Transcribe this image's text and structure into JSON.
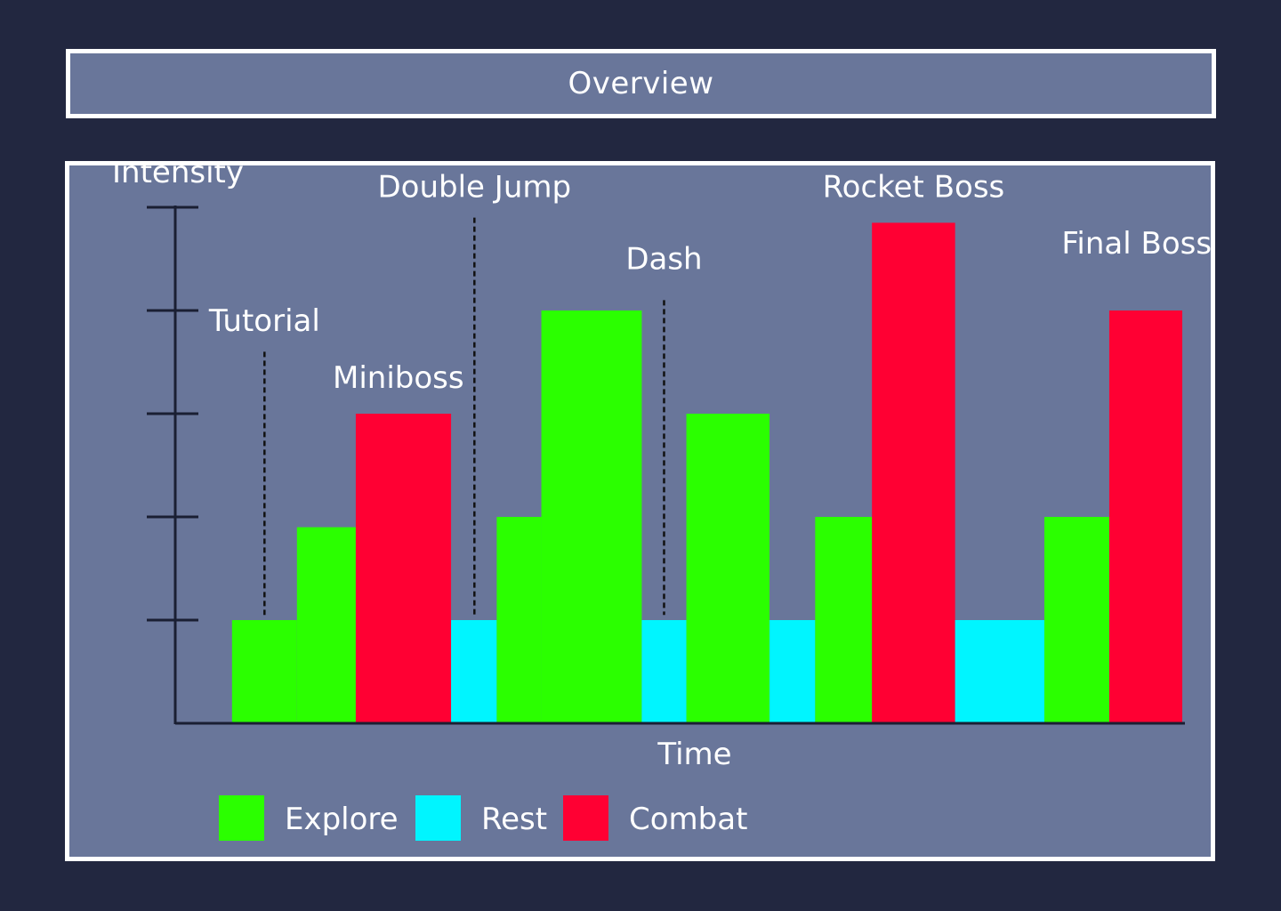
{
  "header": {
    "title": "Overview"
  },
  "chart_data": {
    "type": "bar",
    "title": "",
    "ylabel": "Intensity",
    "xlabel": "Time",
    "ylim": [
      0,
      5
    ],
    "y_ticks": [
      1,
      2,
      3,
      4,
      5
    ],
    "colors": {
      "Explore": "#2BFF00",
      "Rest": "#00F5FF",
      "Combat": "#FF0033"
    },
    "legend": {
      "placement": "bottom",
      "items": [
        "Explore",
        "Rest",
        "Combat"
      ]
    },
    "segments": [
      {
        "type": "Explore",
        "x_start": 0.56,
        "x_end": 1.2,
        "value": 1.0
      },
      {
        "type": "Explore",
        "x_start": 1.2,
        "x_end": 1.78,
        "value": 1.9
      },
      {
        "type": "Combat",
        "x_start": 1.78,
        "x_end": 2.72,
        "value": 3.0
      },
      {
        "type": "Rest",
        "x_start": 2.72,
        "x_end": 3.17,
        "value": 1.0
      },
      {
        "type": "Explore",
        "x_start": 3.17,
        "x_end": 3.61,
        "value": 2.0
      },
      {
        "type": "Explore",
        "x_start": 3.61,
        "x_end": 4.6,
        "value": 4.0
      },
      {
        "type": "Rest",
        "x_start": 4.6,
        "x_end": 5.04,
        "value": 1.0
      },
      {
        "type": "Explore",
        "x_start": 5.04,
        "x_end": 5.86,
        "value": 3.0
      },
      {
        "type": "Rest",
        "x_start": 5.86,
        "x_end": 6.31,
        "value": 1.0
      },
      {
        "type": "Explore",
        "x_start": 6.31,
        "x_end": 6.87,
        "value": 2.0
      },
      {
        "type": "Combat",
        "x_start": 6.87,
        "x_end": 7.69,
        "value": 4.85
      },
      {
        "type": "Rest",
        "x_start": 7.69,
        "x_end": 8.57,
        "value": 1.0
      },
      {
        "type": "Explore",
        "x_start": 8.57,
        "x_end": 9.21,
        "value": 2.0
      },
      {
        "type": "Combat",
        "x_start": 9.21,
        "x_end": 9.93,
        "value": 4.0
      }
    ],
    "annotations": [
      {
        "text": "Tutorial",
        "x": 0.88,
        "line_top": 3.6,
        "line_bottom": 1.05,
        "text_y": 3.8
      },
      {
        "text": "Miniboss",
        "x": 2.2,
        "line_top": null,
        "line_bottom": null,
        "text_y": 3.25
      },
      {
        "text": "Double Jump",
        "x": 2.95,
        "line_top": 4.9,
        "line_bottom": 1.05,
        "text_y": 5.1
      },
      {
        "text": "Dash",
        "x": 4.82,
        "line_top": 4.1,
        "line_bottom": 1.05,
        "text_y": 4.4
      },
      {
        "text": "Rocket Boss",
        "x": 7.28,
        "line_top": null,
        "line_bottom": null,
        "text_y": 5.1
      },
      {
        "text": "Final Boss",
        "x": 9.48,
        "line_top": null,
        "line_bottom": null,
        "text_y": 4.55
      }
    ]
  }
}
